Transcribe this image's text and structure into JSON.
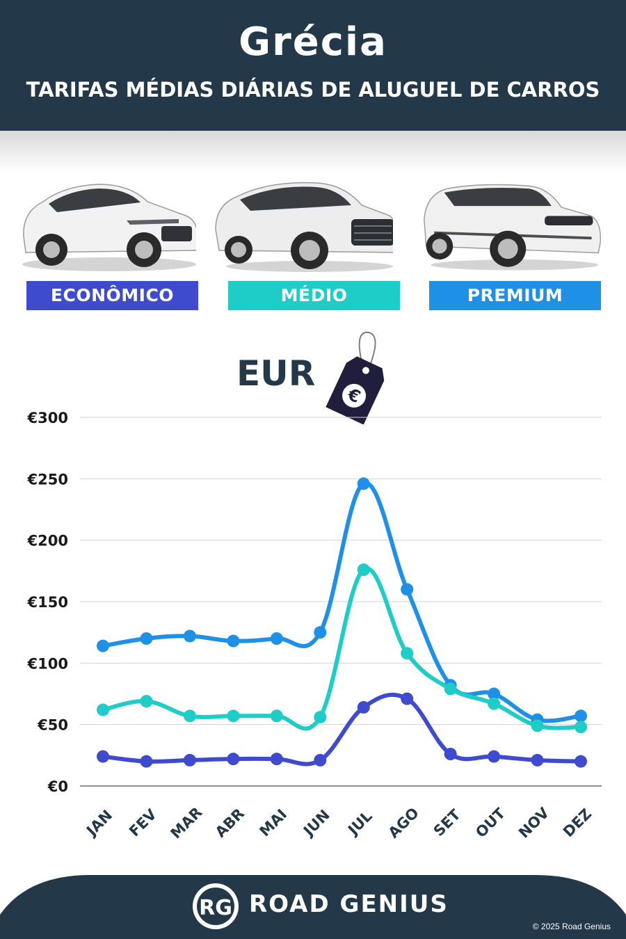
{
  "header": {
    "title": "Grécia",
    "subtitle": "TARIFAS MÉDIAS DIÁRIAS DE ALUGUEL DE CARROS"
  },
  "categories": [
    {
      "label": "ECONÔMICO",
      "color": "#3f4bce",
      "icon": "hatchback-car-icon"
    },
    {
      "label": "MÉDIO",
      "color": "#1ecdc8",
      "icon": "suv-car-icon"
    },
    {
      "label": "PREMIUM",
      "color": "#1e90e8",
      "icon": "luxury-suv-icon"
    }
  ],
  "currency": {
    "label": "EUR",
    "icon": "euro-price-tag-icon"
  },
  "chart_data": {
    "type": "line",
    "categories": [
      "JAN",
      "FEV",
      "MAR",
      "ABR",
      "MAI",
      "JUN",
      "JUL",
      "AGO",
      "SET",
      "OUT",
      "NOV",
      "DEZ"
    ],
    "series": [
      {
        "name": "PREMIUM",
        "color": "#1e90e8",
        "values": [
          114,
          120,
          122,
          118,
          120,
          125,
          246,
          160,
          82,
          75,
          54,
          57
        ]
      },
      {
        "name": "MÉDIO",
        "color": "#1ecdc8",
        "values": [
          62,
          69,
          57,
          57,
          57,
          56,
          176,
          108,
          79,
          67,
          49,
          48
        ]
      },
      {
        "name": "ECONÔMICO",
        "color": "#3f4bce",
        "values": [
          24,
          20,
          21,
          22,
          22,
          21,
          64,
          71,
          26,
          24,
          21,
          20
        ]
      }
    ],
    "ylim": [
      0,
      300
    ],
    "yticks": [
      0,
      50,
      100,
      150,
      200,
      250,
      300
    ],
    "ytick_labels": [
      "€0",
      "€50",
      "€100",
      "€150",
      "€200",
      "€250",
      "€300"
    ],
    "grid": true
  },
  "footer": {
    "logo_mark": "RG",
    "logo_text": "ROAD GENIUS",
    "copyright": "© 2025 Road Genius",
    "bg_color": "#233848"
  }
}
